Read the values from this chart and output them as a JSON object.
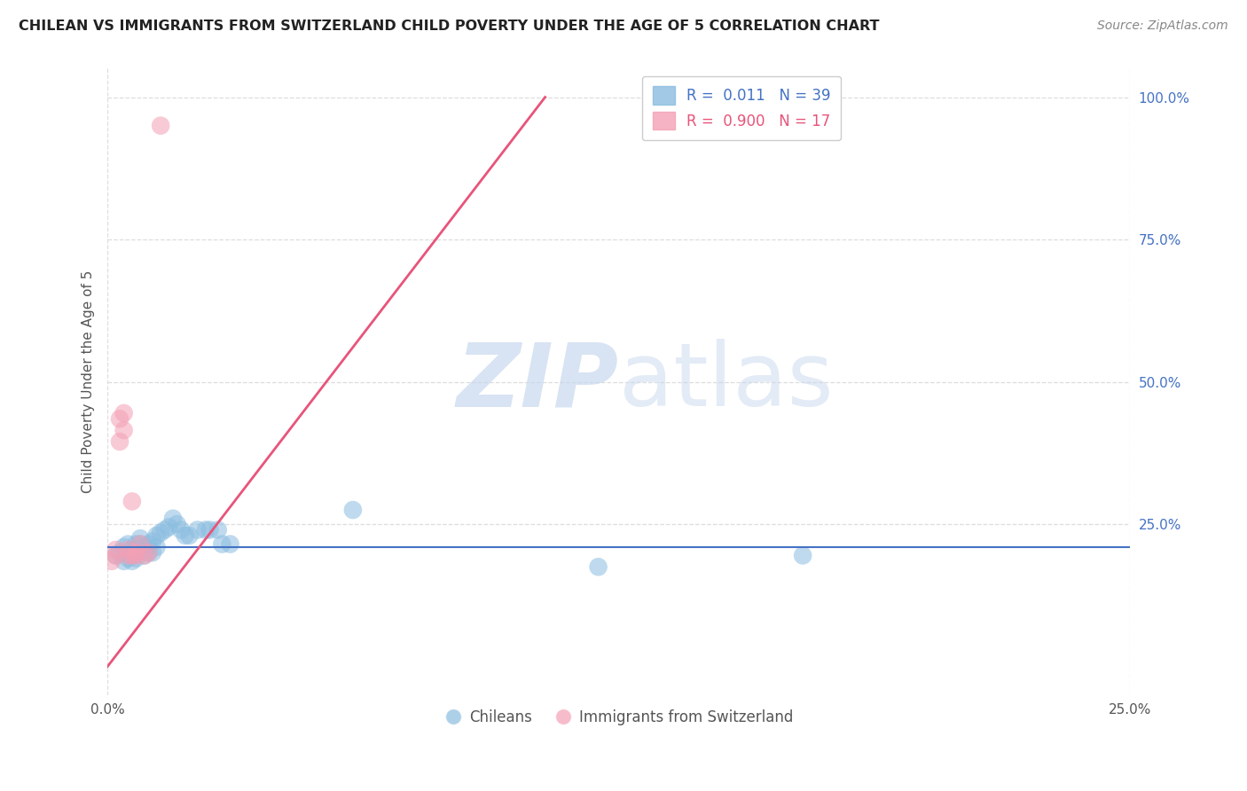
{
  "title": "CHILEAN VS IMMIGRANTS FROM SWITZERLAND CHILD POVERTY UNDER THE AGE OF 5 CORRELATION CHART",
  "source": "Source: ZipAtlas.com",
  "ylabel_label": "Child Poverty Under the Age of 5",
  "xlim": [
    0.0,
    0.25
  ],
  "ylim": [
    -0.05,
    1.05
  ],
  "legend_entries": [
    {
      "label": "R =  0.011   N = 39",
      "color": "#8bbde0"
    },
    {
      "label": "R =  0.900   N = 17",
      "color": "#f4a0b5"
    }
  ],
  "legend_labels": [
    "Chileans",
    "Immigrants from Switzerland"
  ],
  "watermark_zip": "ZIP",
  "watermark_atlas": "atlas",
  "blue_color": "#8bbde0",
  "pink_color": "#f4a0b5",
  "blue_line_color": "#4472c4",
  "pink_line_color": "#e8547a",
  "blue_scatter_x": [
    0.002,
    0.003,
    0.004,
    0.004,
    0.005,
    0.005,
    0.006,
    0.006,
    0.006,
    0.007,
    0.007,
    0.007,
    0.008,
    0.008,
    0.009,
    0.009,
    0.01,
    0.01,
    0.011,
    0.011,
    0.012,
    0.012,
    0.013,
    0.014,
    0.015,
    0.016,
    0.017,
    0.018,
    0.019,
    0.02,
    0.022,
    0.024,
    0.025,
    0.027,
    0.028,
    0.03,
    0.12,
    0.17,
    0.06
  ],
  "blue_scatter_y": [
    0.195,
    0.2,
    0.185,
    0.21,
    0.19,
    0.215,
    0.205,
    0.195,
    0.185,
    0.215,
    0.2,
    0.19,
    0.215,
    0.225,
    0.21,
    0.195,
    0.215,
    0.2,
    0.22,
    0.2,
    0.23,
    0.21,
    0.235,
    0.24,
    0.245,
    0.26,
    0.25,
    0.24,
    0.23,
    0.23,
    0.24,
    0.24,
    0.24,
    0.24,
    0.215,
    0.215,
    0.175,
    0.195,
    0.275
  ],
  "pink_scatter_x": [
    0.001,
    0.002,
    0.002,
    0.003,
    0.003,
    0.004,
    0.004,
    0.005,
    0.005,
    0.006,
    0.006,
    0.007,
    0.007,
    0.008,
    0.009,
    0.01,
    0.013
  ],
  "pink_scatter_y": [
    0.185,
    0.195,
    0.205,
    0.395,
    0.435,
    0.415,
    0.445,
    0.195,
    0.205,
    0.195,
    0.29,
    0.195,
    0.2,
    0.215,
    0.195,
    0.2,
    0.95
  ],
  "blue_trend_x": [
    0.0,
    0.25
  ],
  "blue_trend_y": [
    0.21,
    0.21
  ],
  "pink_trend_x": [
    0.0,
    0.107
  ],
  "pink_trend_y": [
    0.0,
    1.0
  ],
  "grid_color": "#dddddd",
  "bg_color": "#ffffff",
  "title_fontsize": 11.5,
  "source_fontsize": 10
}
